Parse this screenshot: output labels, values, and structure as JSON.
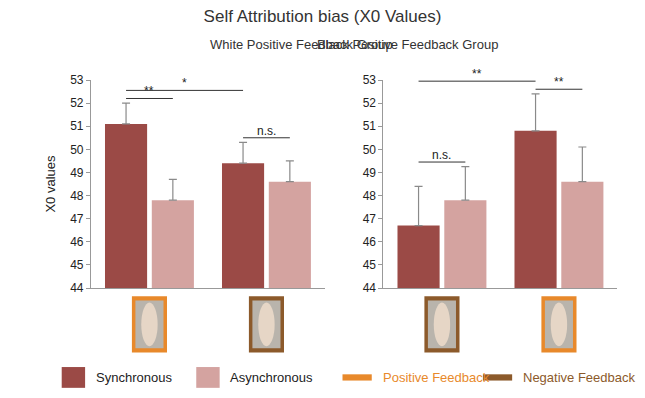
{
  "title": "Self Attribution bias (X0 Values)",
  "legend": "bottom",
  "feedback": [
    {
      "name": "Positive Feedback",
      "color": "#e8892b"
    },
    {
      "name": "Negative Feedback",
      "color": "#8c5a2b"
    }
  ],
  "chart_data": [
    {
      "type": "bar",
      "title": "White Positive Feedback Group",
      "ylabel": "X0 values",
      "categories": [
        null,
        null
      ],
      "category_feedback": [
        "Positive Feedback",
        "Negative Feedback"
      ],
      "series": [
        {
          "name": "Synchronous",
          "color": "#9b4a46",
          "values": [
            51.1,
            49.4
          ],
          "errors": [
            0.9,
            0.9
          ]
        },
        {
          "name": "Asynchronous",
          "color": "#d4a3a0",
          "values": [
            47.8,
            48.6
          ],
          "errors": [
            0.9,
            0.9
          ]
        }
      ],
      "ylim": [
        44,
        53
      ],
      "yticks": [
        44,
        45,
        46,
        47,
        48,
        49,
        50,
        51,
        52,
        53
      ],
      "tick_labels": "y",
      "grid": false,
      "significance": [
        {
          "from": [
            0,
            0
          ],
          "to": [
            0,
            1
          ],
          "label": "**"
        },
        {
          "from": [
            0,
            0
          ],
          "to": [
            1,
            0
          ],
          "label": "*"
        },
        {
          "from": [
            1,
            0
          ],
          "to": [
            1,
            1
          ],
          "label": "n.s."
        }
      ]
    },
    {
      "type": "bar",
      "title": "Black Positive Feedback Group",
      "categories": [
        null,
        null
      ],
      "category_feedback": [
        "Negative Feedback",
        "Positive Feedback"
      ],
      "series": [
        {
          "name": "Synchronous",
          "color": "#9b4a46",
          "values": [
            46.7,
            50.8
          ],
          "errors": [
            1.7,
            1.6
          ]
        },
        {
          "name": "Asynchronous",
          "color": "#d4a3a0",
          "values": [
            47.8,
            48.6
          ],
          "errors": [
            1.45,
            1.5
          ]
        }
      ],
      "ylim": [
        44,
        53
      ],
      "yticks": [
        44,
        45,
        46,
        47,
        48,
        49,
        50,
        51,
        52,
        53
      ],
      "tick_labels": "y",
      "grid": false,
      "significance": [
        {
          "from": [
            0,
            0
          ],
          "to": [
            0,
            1
          ],
          "label": "n.s."
        },
        {
          "from": [
            0,
            0
          ],
          "to": [
            1,
            0
          ],
          "label": "**"
        },
        {
          "from": [
            1,
            0
          ],
          "to": [
            1,
            1
          ],
          "label": "**"
        }
      ]
    }
  ]
}
